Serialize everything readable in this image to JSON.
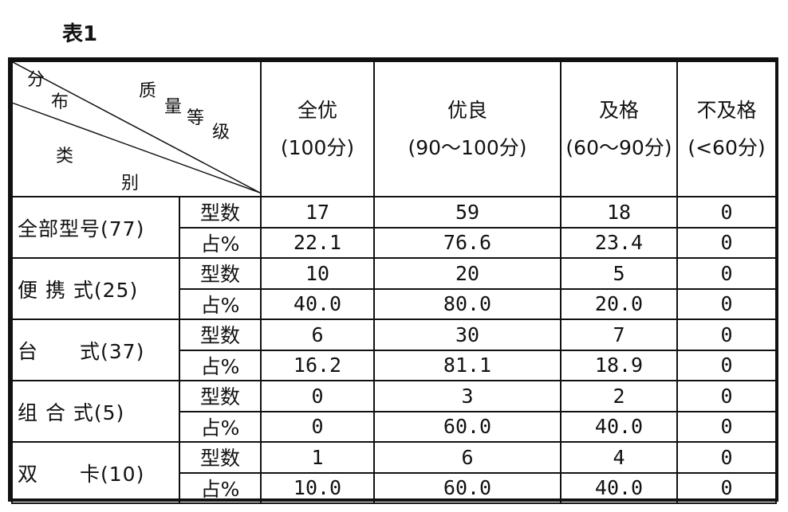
{
  "caption": "表1",
  "corner": {
    "top_right": [
      "质",
      "量",
      "等",
      "级"
    ],
    "bottom_left": [
      "分",
      "布",
      "类",
      "别"
    ]
  },
  "columns": [
    {
      "label": "全优",
      "range": "(100分)"
    },
    {
      "label": "优良",
      "range": "(90～100分)"
    },
    {
      "label": "及格",
      "range": "(60～90分)"
    },
    {
      "label": "不及格",
      "range": "(<60分)"
    }
  ],
  "row_types": [
    "型数",
    "占%"
  ],
  "groups": [
    {
      "name": "全部型号(77)",
      "rows": [
        [
          "17",
          "59",
          "18",
          "0"
        ],
        [
          "22.1",
          "76.6",
          "23.4",
          "0"
        ]
      ]
    },
    {
      "name": "便 携 式(25)",
      "rows": [
        [
          "10",
          "20",
          "5",
          "0"
        ],
        [
          "40.0",
          "80.0",
          "20.0",
          "0"
        ]
      ]
    },
    {
      "name": "台　　式(37)",
      "rows": [
        [
          "6",
          "30",
          "7",
          "0"
        ],
        [
          "16.2",
          "81.1",
          "18.9",
          "0"
        ]
      ]
    },
    {
      "name": "组 合 式(5)",
      "rows": [
        [
          "0",
          "3",
          "2",
          "0"
        ],
        [
          "0",
          "60.0",
          "40.0",
          "0"
        ]
      ]
    },
    {
      "name": "双　　卡(10)",
      "rows": [
        [
          "1",
          "6",
          "4",
          "0"
        ],
        [
          "10.0",
          "60.0",
          "40.0",
          "0"
        ]
      ]
    }
  ]
}
